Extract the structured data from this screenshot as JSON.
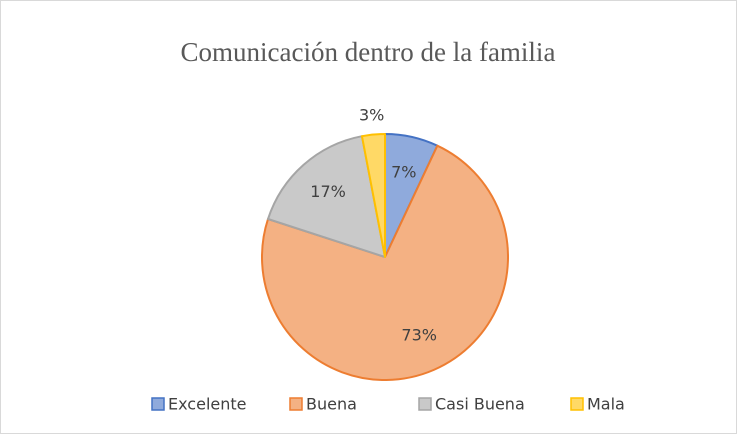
{
  "chart_data": {
    "type": "pie",
    "title": "Comunicación dentro de la familia",
    "categories": [
      "Excelente",
      "Buena",
      "Casi Buena",
      "Mala"
    ],
    "values": [
      7,
      73,
      17,
      3
    ],
    "value_labels": [
      "7%",
      "73%",
      "17%",
      "3%"
    ],
    "colors": [
      "#8faadc",
      "#f4b183",
      "#c9c9c9",
      "#ffd966"
    ],
    "edge_colors": [
      "#4472c4",
      "#ed7d31",
      "#a5a5a5",
      "#ffc000"
    ],
    "legend": "bottom"
  }
}
